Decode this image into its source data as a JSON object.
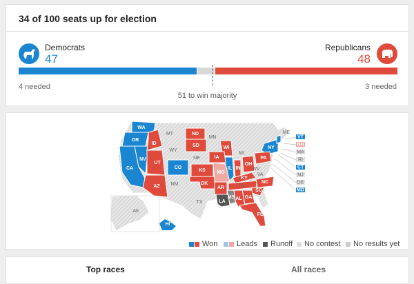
{
  "header": {
    "title": "34 of 100 seats up for election"
  },
  "dem": {
    "name": "Democrats",
    "count": "47",
    "needed": "4 needed",
    "color": "#1a85d0",
    "icon": "donkey-icon"
  },
  "rep": {
    "name": "Republicans",
    "count": "48",
    "needed": "3 needed",
    "color": "#e04a3c",
    "icon": "elephant-icon"
  },
  "majority": "51 to win majority",
  "legend": {
    "won": "Won",
    "leads": "Leads",
    "runoff": "Runoff",
    "no_contest": "No contest",
    "no_results": "No results yet"
  },
  "tabs": [
    "Top races",
    "All races"
  ],
  "states": {
    "blue": [
      "WA",
      "OR",
      "CA",
      "NV",
      "CO",
      "IL",
      "NY",
      "HI",
      "VT",
      "CT",
      "MD"
    ],
    "red": [
      "ID",
      "UT",
      "AZ",
      "ND",
      "SD",
      "KS",
      "OK",
      "AR",
      "WI",
      "IA",
      "IN",
      "OH",
      "PA",
      "KY",
      "TN",
      "NC",
      "SC",
      "GA",
      "AL",
      "FL",
      "NH"
    ],
    "lightred": [
      "MO",
      "NH"
    ],
    "runoff": [
      "LA",
      "MS"
    ],
    "grey": [
      "MT",
      "WY",
      "NM",
      "TX",
      "NE",
      "MN",
      "MI",
      "ME",
      "MA",
      "RI",
      "NJ",
      "DE",
      "WV",
      "VA",
      "AK"
    ]
  }
}
